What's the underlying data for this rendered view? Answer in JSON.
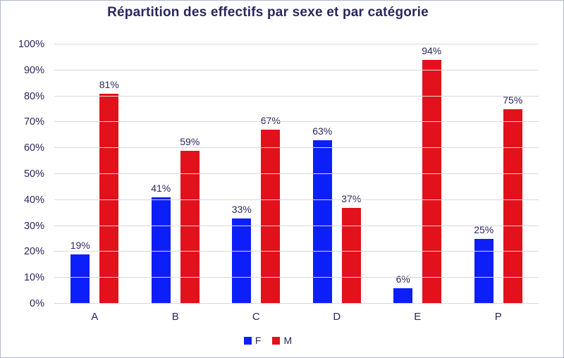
{
  "chart_data": {
    "type": "bar",
    "title": "Répartition des effectifs par sexe et par catégorie",
    "categories": [
      "A",
      "B",
      "C",
      "D",
      "E",
      "P"
    ],
    "series": [
      {
        "name": "F",
        "color": "#0d1ff9",
        "values": [
          19,
          41,
          33,
          63,
          6,
          25
        ]
      },
      {
        "name": "M",
        "color": "#e2111c",
        "values": [
          81,
          59,
          67,
          37,
          94,
          75
        ]
      }
    ],
    "data_labels": [
      "19%",
      "81%",
      "41%",
      "59%",
      "33%",
      "67%",
      "63%",
      "37%",
      "6%",
      "94%",
      "25%",
      "75%"
    ],
    "value_suffix": "%",
    "ylim": [
      0,
      100
    ],
    "ytick_step": 10,
    "ytick_labels": [
      "0%",
      "10%",
      "20%",
      "30%",
      "40%",
      "50%",
      "60%",
      "70%",
      "80%",
      "90%",
      "100%"
    ],
    "grid": true,
    "legend_position": "bottom",
    "xlabel": "",
    "ylabel": ""
  },
  "colors": {
    "background": "#ffffff",
    "frame_border": "#aeb9d0",
    "title_text": "#29275f",
    "axis_text": "#29275f",
    "gridline": "#d9d9d9",
    "series_f_blue": "#0d1ff9",
    "series_m_red": "#e2111c"
  }
}
